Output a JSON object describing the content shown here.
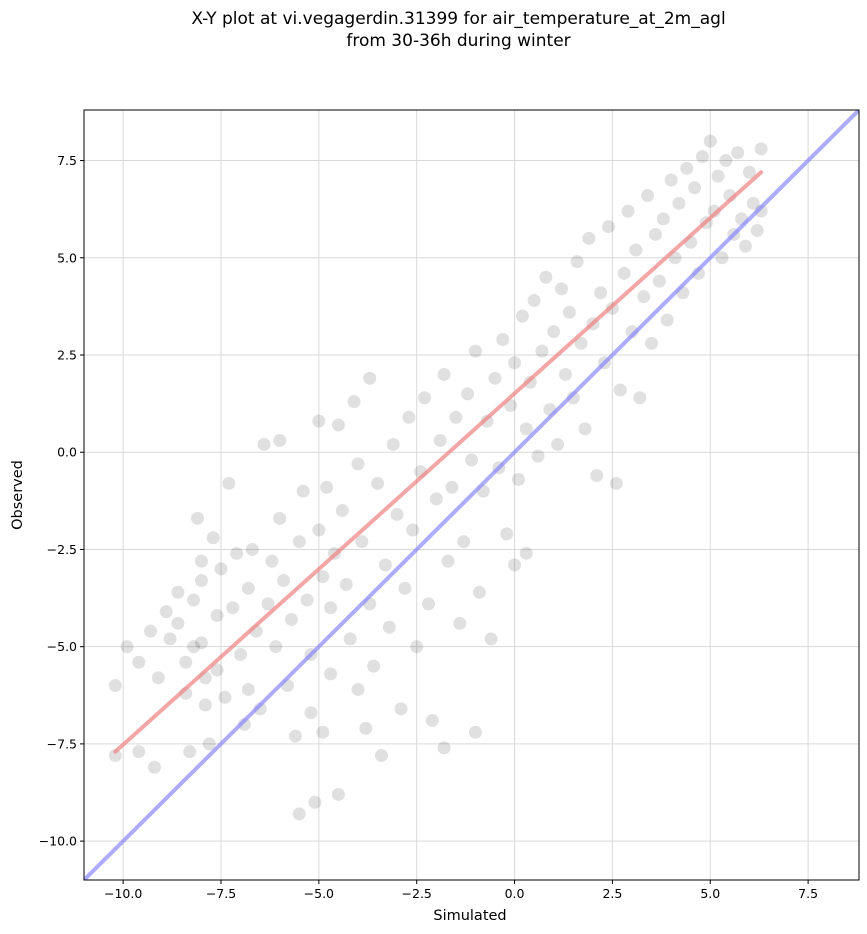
{
  "chart_data": {
    "type": "scatter",
    "title": "X-Y plot at vi.vegagerdin.31399 for air_temperature_at_2m_agl",
    "subtitle": "from 30-36h during winter",
    "xlabel": "Simulated",
    "ylabel": "Observed",
    "xlim": [
      -11.0,
      8.8
    ],
    "ylim": [
      -11.0,
      8.8
    ],
    "xticks": [
      -10.0,
      -7.5,
      -5.0,
      -2.5,
      0.0,
      2.5,
      5.0,
      7.5
    ],
    "yticks": [
      -10.0,
      -7.5,
      -5.0,
      -2.5,
      0.0,
      2.5,
      5.0,
      7.5
    ],
    "xtick_labels": [
      "−10.0",
      "−7.5",
      "−5.0",
      "−2.5",
      "0.0",
      "2.5",
      "5.0",
      "7.5"
    ],
    "ytick_labels": [
      "−10.0",
      "−7.5",
      "−5.0",
      "−2.5",
      "0.0",
      "2.5",
      "5.0",
      "7.5"
    ],
    "grid": true,
    "colors": {
      "points": "#000000",
      "fit_line": "#f08080",
      "identity_line": "#8080ff"
    },
    "fit_line": {
      "x": [
        -10.2,
        6.3
      ],
      "y": [
        -7.7,
        7.2
      ]
    },
    "identity_line": {
      "x": [
        -11.0,
        8.8
      ],
      "y": [
        -11.0,
        8.8
      ]
    },
    "points": [
      [
        -10.2,
        -6.0
      ],
      [
        -10.2,
        -7.8
      ],
      [
        -9.9,
        -5.0
      ],
      [
        -9.6,
        -5.4
      ],
      [
        -9.6,
        -7.7
      ],
      [
        -9.3,
        -4.6
      ],
      [
        -9.2,
        -8.1
      ],
      [
        -9.1,
        -5.8
      ],
      [
        -8.9,
        -4.1
      ],
      [
        -8.8,
        -4.8
      ],
      [
        -8.6,
        -3.6
      ],
      [
        -8.6,
        -4.4
      ],
      [
        -8.4,
        -5.4
      ],
      [
        -8.4,
        -6.2
      ],
      [
        -8.3,
        -7.7
      ],
      [
        -8.2,
        -3.8
      ],
      [
        -8.2,
        -5.0
      ],
      [
        -8.1,
        -1.7
      ],
      [
        -8.0,
        -2.8
      ],
      [
        -8.0,
        -3.3
      ],
      [
        -8.0,
        -4.9
      ],
      [
        -7.9,
        -5.8
      ],
      [
        -7.9,
        -6.5
      ],
      [
        -7.8,
        -7.5
      ],
      [
        -7.7,
        -2.2
      ],
      [
        -7.6,
        -4.2
      ],
      [
        -7.6,
        -5.6
      ],
      [
        -7.5,
        -3.0
      ],
      [
        -7.4,
        -6.3
      ],
      [
        -7.3,
        -0.8
      ],
      [
        -7.2,
        -4.0
      ],
      [
        -7.1,
        -2.6
      ],
      [
        -7.0,
        -5.2
      ],
      [
        -6.9,
        -7.0
      ],
      [
        -6.8,
        -3.5
      ],
      [
        -6.8,
        -6.1
      ],
      [
        -6.7,
        -2.5
      ],
      [
        -6.6,
        -4.6
      ],
      [
        -6.5,
        -6.6
      ],
      [
        -6.4,
        0.2
      ],
      [
        -6.3,
        -3.9
      ],
      [
        -6.2,
        -2.8
      ],
      [
        -6.1,
        -5.0
      ],
      [
        -6.0,
        0.3
      ],
      [
        -6.0,
        -1.7
      ],
      [
        -5.9,
        -3.3
      ],
      [
        -5.8,
        -6.0
      ],
      [
        -5.7,
        -4.3
      ],
      [
        -5.6,
        -7.3
      ],
      [
        -5.5,
        -9.3
      ],
      [
        -5.5,
        -2.3
      ],
      [
        -5.4,
        -1.0
      ],
      [
        -5.3,
        -3.8
      ],
      [
        -5.2,
        -5.2
      ],
      [
        -5.2,
        -6.7
      ],
      [
        -5.1,
        -9.0
      ],
      [
        -5.0,
        0.8
      ],
      [
        -5.0,
        -2.0
      ],
      [
        -4.9,
        -3.2
      ],
      [
        -4.9,
        -7.2
      ],
      [
        -4.8,
        -0.9
      ],
      [
        -4.7,
        -4.0
      ],
      [
        -4.7,
        -5.7
      ],
      [
        -4.6,
        -2.6
      ],
      [
        -4.5,
        -8.8
      ],
      [
        -4.5,
        0.7
      ],
      [
        -4.4,
        -1.5
      ],
      [
        -4.3,
        -3.4
      ],
      [
        -4.2,
        -4.8
      ],
      [
        -4.1,
        1.3
      ],
      [
        -4.0,
        -6.1
      ],
      [
        -4.0,
        -0.3
      ],
      [
        -3.9,
        -2.3
      ],
      [
        -3.8,
        -7.1
      ],
      [
        -3.7,
        1.9
      ],
      [
        -3.7,
        -3.9
      ],
      [
        -3.6,
        -5.5
      ],
      [
        -3.5,
        -0.8
      ],
      [
        -3.4,
        -7.8
      ],
      [
        -3.3,
        -2.9
      ],
      [
        -3.2,
        -4.5
      ],
      [
        -3.1,
        0.2
      ],
      [
        -3.0,
        -1.6
      ],
      [
        -2.9,
        -6.6
      ],
      [
        -2.8,
        -3.5
      ],
      [
        -2.7,
        0.9
      ],
      [
        -2.6,
        -2.0
      ],
      [
        -2.5,
        -5.0
      ],
      [
        -2.4,
        -0.5
      ],
      [
        -2.3,
        1.4
      ],
      [
        -2.2,
        -3.9
      ],
      [
        -2.1,
        -6.9
      ],
      [
        -2.0,
        -1.2
      ],
      [
        -1.9,
        0.3
      ],
      [
        -1.8,
        -7.6
      ],
      [
        -1.8,
        2.0
      ],
      [
        -1.7,
        -2.8
      ],
      [
        -1.6,
        -0.9
      ],
      [
        -1.5,
        0.9
      ],
      [
        -1.4,
        -4.4
      ],
      [
        -1.3,
        -2.3
      ],
      [
        -1.2,
        1.5
      ],
      [
        -1.1,
        -0.2
      ],
      [
        -1.0,
        -7.2
      ],
      [
        -1.0,
        2.6
      ],
      [
        -0.9,
        -3.6
      ],
      [
        -0.8,
        -1.0
      ],
      [
        -0.7,
        0.8
      ],
      [
        -0.6,
        -4.8
      ],
      [
        -0.5,
        1.9
      ],
      [
        -0.4,
        -0.4
      ],
      [
        -0.3,
        2.9
      ],
      [
        -0.2,
        -2.1
      ],
      [
        -0.1,
        1.2
      ],
      [
        0.0,
        -2.9
      ],
      [
        0.0,
        2.3
      ],
      [
        0.1,
        -0.7
      ],
      [
        0.2,
        3.5
      ],
      [
        0.3,
        0.6
      ],
      [
        0.3,
        -2.6
      ],
      [
        0.4,
        1.8
      ],
      [
        0.5,
        3.9
      ],
      [
        0.6,
        -0.1
      ],
      [
        0.7,
        2.6
      ],
      [
        0.8,
        4.5
      ],
      [
        0.9,
        1.1
      ],
      [
        1.0,
        3.1
      ],
      [
        1.1,
        0.2
      ],
      [
        1.2,
        4.2
      ],
      [
        1.3,
        2.0
      ],
      [
        1.4,
        3.6
      ],
      [
        1.5,
        1.4
      ],
      [
        1.6,
        4.9
      ],
      [
        1.7,
        2.8
      ],
      [
        1.8,
        0.6
      ],
      [
        1.9,
        5.5
      ],
      [
        2.0,
        3.3
      ],
      [
        2.1,
        -0.6
      ],
      [
        2.2,
        4.1
      ],
      [
        2.3,
        2.3
      ],
      [
        2.4,
        5.8
      ],
      [
        2.5,
        3.7
      ],
      [
        2.6,
        -0.8
      ],
      [
        2.7,
        1.6
      ],
      [
        2.8,
        4.6
      ],
      [
        2.9,
        6.2
      ],
      [
        3.0,
        3.1
      ],
      [
        3.1,
        5.2
      ],
      [
        3.2,
        1.4
      ],
      [
        3.3,
        4.0
      ],
      [
        3.4,
        6.6
      ],
      [
        3.5,
        2.8
      ],
      [
        3.6,
        5.6
      ],
      [
        3.7,
        4.4
      ],
      [
        3.8,
        6.0
      ],
      [
        3.9,
        3.4
      ],
      [
        4.0,
        7.0
      ],
      [
        4.1,
        5.0
      ],
      [
        4.2,
        6.4
      ],
      [
        4.3,
        4.1
      ],
      [
        4.4,
        7.3
      ],
      [
        4.5,
        5.4
      ],
      [
        4.6,
        6.8
      ],
      [
        4.7,
        4.6
      ],
      [
        4.8,
        7.6
      ],
      [
        4.9,
        5.9
      ],
      [
        5.0,
        8.0
      ],
      [
        5.1,
        6.2
      ],
      [
        5.2,
        7.1
      ],
      [
        5.3,
        5.0
      ],
      [
        5.4,
        7.5
      ],
      [
        5.5,
        6.6
      ],
      [
        5.6,
        5.6
      ],
      [
        5.7,
        7.7
      ],
      [
        5.8,
        6.0
      ],
      [
        5.9,
        5.3
      ],
      [
        6.0,
        7.2
      ],
      [
        6.1,
        6.4
      ],
      [
        6.2,
        5.7
      ],
      [
        6.3,
        6.2
      ],
      [
        6.3,
        7.8
      ]
    ]
  }
}
